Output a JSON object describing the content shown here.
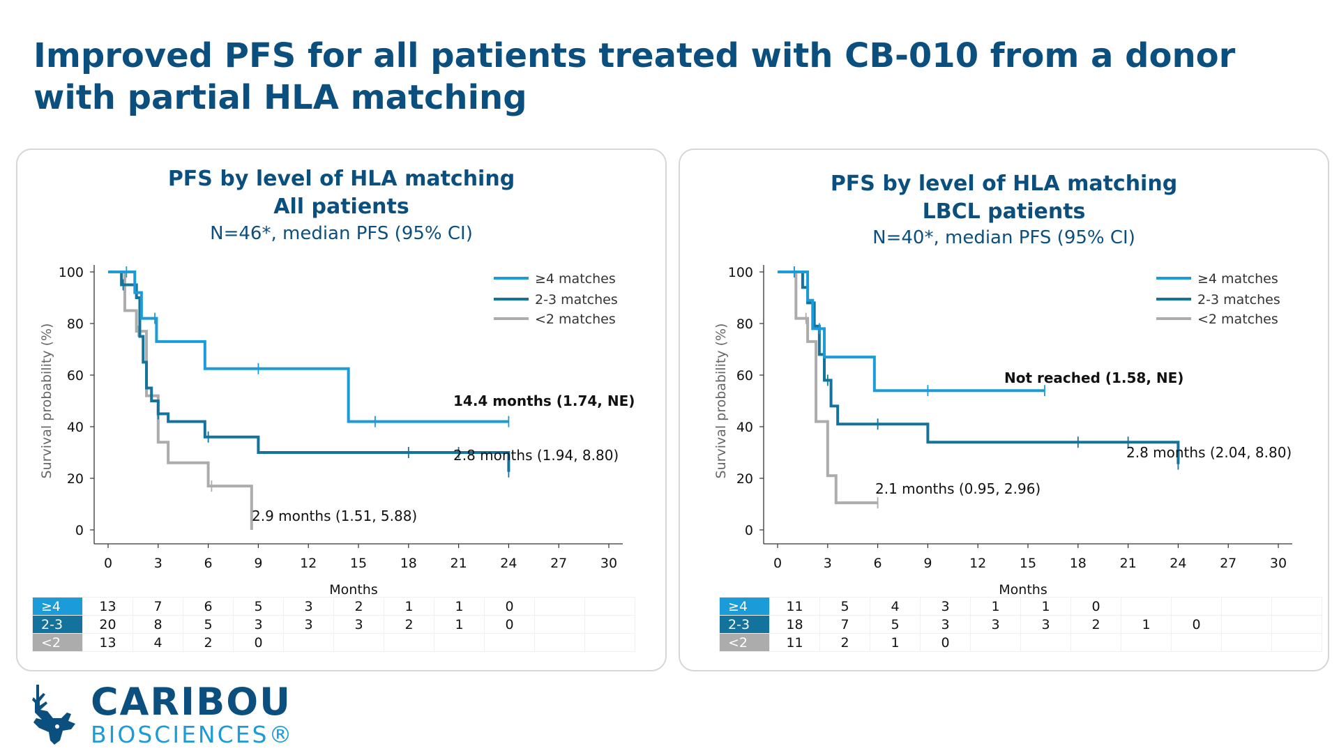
{
  "title": "Improved PFS for all patients treated with CB-010 from a donor with partial HLA matching",
  "colors": {
    "ge4": "#1b9bd7",
    "mid": "#14739c",
    "lt2": "#acacac",
    "title": "#0b4f7e"
  },
  "logo": {
    "word1": "CARIBOU",
    "word2": "BIOSCIENCES®",
    "icon": "caribou-head-icon"
  },
  "chart_data": [
    {
      "type": "line",
      "title": "PFS by level of HLA matching",
      "subtitle": "All patients",
      "caption": "N=46*, median PFS (95% CI)",
      "xlabel": "Months",
      "ylabel": "Survival probability (%)",
      "xlim": [
        0,
        30
      ],
      "ylim": [
        0,
        100
      ],
      "xticks": [
        "0",
        "3",
        "6",
        "9",
        "12",
        "15",
        "18",
        "21",
        "24",
        "27",
        "30"
      ],
      "yticks": [
        "0",
        "20",
        "40",
        "60",
        "80",
        "100"
      ],
      "legend": [
        "≥4 matches",
        "2-3 matches",
        "<2 matches"
      ],
      "series": [
        {
          "name": "≥4 matches",
          "color": "#1b9bd7",
          "x": [
            0,
            1.6,
            2.0,
            2.9,
            5.8,
            14.4,
            24
          ],
          "y": [
            100,
            92,
            82,
            73,
            62.5,
            42,
            42
          ],
          "censor_x": [
            1.1,
            2.8,
            9.0,
            16.0,
            24.0
          ]
        },
        {
          "name": "2-3 matches",
          "color": "#14739c",
          "x": [
            0,
            0.8,
            1.7,
            1.9,
            2.1,
            2.3,
            2.6,
            3.0,
            3.6,
            5.8,
            9.0,
            24
          ],
          "y": [
            100,
            95,
            90,
            75,
            65,
            55,
            50,
            45,
            42,
            36,
            30,
            22.5
          ],
          "censor_x": [
            0.9,
            3.0,
            6.0,
            18.0,
            21.0,
            24.0
          ]
        },
        {
          "name": "<2 matches",
          "color": "#acacac",
          "x": [
            0,
            1.0,
            1.7,
            2.3,
            3.0,
            3.6,
            6.0,
            8.6
          ],
          "y": [
            100,
            85,
            77,
            52,
            34,
            26,
            17,
            0
          ],
          "censor_x": [
            1.8,
            6.2
          ]
        }
      ],
      "annotations": [
        {
          "text": "14.4 months (1.74, NE)",
          "bold": true
        },
        {
          "text": "2.8 months (1.94, 8.80)",
          "bold": false
        },
        {
          "text": "2.9 months (1.51, 5.88)",
          "bold": false
        }
      ],
      "risk_table": {
        "groups": [
          {
            "label": "≥4",
            "color": "#1b9bd7",
            "values": [
              "13",
              "7",
              "6",
              "5",
              "3",
              "2",
              "1",
              "1",
              "0",
              "",
              ""
            ]
          },
          {
            "label": "2-3",
            "color": "#14739c",
            "values": [
              "20",
              "8",
              "5",
              "3",
              "3",
              "3",
              "2",
              "1",
              "0",
              "",
              ""
            ]
          },
          {
            "label": "<2",
            "color": "#acacac",
            "values": [
              "13",
              "4",
              "2",
              "0",
              "",
              "",
              "",
              "",
              "",
              "",
              ""
            ]
          }
        ]
      }
    },
    {
      "type": "line",
      "title": "PFS by level of HLA matching",
      "subtitle": "LBCL patients",
      "caption": "N=40*, median PFS (95% CI)",
      "xlabel": "Months",
      "ylabel": "Survival probability (%)",
      "xlim": [
        0,
        30
      ],
      "ylim": [
        0,
        100
      ],
      "xticks": [
        "0",
        "3",
        "6",
        "9",
        "12",
        "15",
        "18",
        "21",
        "24",
        "27",
        "30"
      ],
      "yticks": [
        "0",
        "20",
        "40",
        "60",
        "80",
        "100"
      ],
      "legend": [
        "≥4 matches",
        "2-3 matches",
        "<2 matches"
      ],
      "series": [
        {
          "name": "≥4 matches",
          "color": "#1b9bd7",
          "x": [
            0,
            1.8,
            2.1,
            2.8,
            5.8,
            16
          ],
          "y": [
            100,
            89,
            78,
            67,
            54,
            54
          ],
          "censor_x": [
            1.0,
            2.5,
            9.0,
            16.0
          ]
        },
        {
          "name": "2-3 matches",
          "color": "#14739c",
          "x": [
            0,
            1.5,
            1.8,
            2.2,
            2.5,
            2.8,
            3.2,
            3.6,
            9.0,
            24
          ],
          "y": [
            100,
            94,
            88,
            79,
            68,
            58,
            48,
            41,
            34,
            25.5
          ],
          "censor_x": [
            1.0,
            3.0,
            6.0,
            18.0,
            21.0,
            24.0
          ]
        },
        {
          "name": "<2 matches",
          "color": "#acacac",
          "x": [
            0,
            1.1,
            1.8,
            2.3,
            3.0,
            3.5,
            6.0
          ],
          "y": [
            100,
            82,
            73,
            42,
            21,
            10.5,
            10.5
          ],
          "censor_x": [
            1.7,
            6.0
          ]
        }
      ],
      "annotations": [
        {
          "text": "Not reached  (1.58, NE)",
          "bold": true
        },
        {
          "text": "2.8 months (2.04, 8.80)",
          "bold": false
        },
        {
          "text": "2.1 months (0.95, 2.96)",
          "bold": false
        }
      ],
      "risk_table": {
        "groups": [
          {
            "label": "≥4",
            "color": "#1b9bd7",
            "values": [
              "11",
              "5",
              "4",
              "3",
              "1",
              "1",
              "0",
              "",
              "",
              "",
              ""
            ]
          },
          {
            "label": "2-3",
            "color": "#14739c",
            "values": [
              "18",
              "7",
              "5",
              "3",
              "3",
              "3",
              "2",
              "1",
              "0",
              "",
              ""
            ]
          },
          {
            "label": "<2",
            "color": "#acacac",
            "values": [
              "11",
              "2",
              "1",
              "0",
              "",
              "",
              "",
              "",
              "",
              "",
              ""
            ]
          }
        ]
      }
    }
  ]
}
